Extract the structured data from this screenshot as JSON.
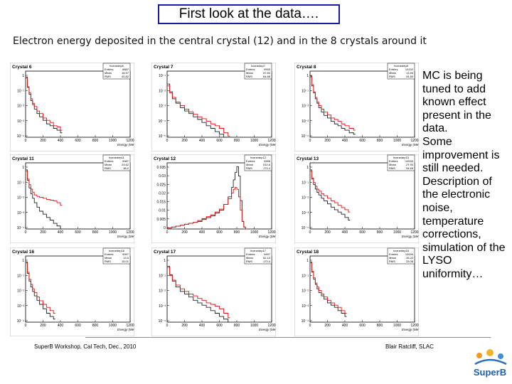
{
  "slide": {
    "title": "First look at the data….",
    "subtitle": "Electron energy deposited in the central crystal (12) and in the 8 crystals around it",
    "bullets": [
      "MC is being tuned to add known effect present in the data.",
      "Some improvement is still needed.",
      "Description of the electronic noise, temperature corrections, simulation of the LYSO uniformity…"
    ],
    "footer_left": "SuperB Workshop, Cal Tech, Dec., 2010",
    "footer_right": "Blair Ratcliff, SLAC",
    "logo_text": "SuperB"
  },
  "chart_data": [
    {
      "type": "line",
      "title": "Crystal 6",
      "xlabel": "Energy (MeV)",
      "xlim": [
        0,
        1200
      ],
      "log_y": true,
      "xticks": [
        "0",
        "200",
        "400",
        "600",
        "800",
        "1000",
        "1200"
      ],
      "yticks": [
        "1",
        "10⁻¹",
        "10⁻²",
        "10⁻³",
        "10⁻⁴"
      ],
      "stats": {
        "name": "hcenedep6",
        "rows": [
          [
            "Entries",
            "8887"
          ],
          [
            "Mean",
            "18.57"
          ],
          [
            "RMS",
            "40.82"
          ]
        ]
      },
      "x": [
        5,
        20,
        40,
        60,
        80,
        100,
        130,
        160,
        200,
        240,
        280,
        320,
        360,
        400
      ],
      "series": [
        {
          "name": "data",
          "color": "#222222",
          "values": [
            0.6,
            0.12,
            0.04,
            0.015,
            0.008,
            0.004,
            0.002,
            0.0012,
            0.0007,
            0.0004,
            0.0003,
            0.0002,
            0.00015,
            0.0001
          ]
        },
        {
          "name": "MC",
          "color": "#e01010",
          "values": [
            0.5,
            0.13,
            0.05,
            0.02,
            0.01,
            0.006,
            0.003,
            0.002,
            0.001,
            0.0007,
            0.0005,
            0.0003,
            0.00025,
            0.00015
          ]
        }
      ]
    },
    {
      "type": "line",
      "title": "Crystal 7",
      "xlabel": "Energy (MeV)",
      "xlim": [
        0,
        1200
      ],
      "log_y": true,
      "xticks": [
        "0",
        "200",
        "400",
        "600",
        "800",
        "1000",
        "1200"
      ],
      "yticks": [
        "10⁻¹",
        "10⁻²",
        "10⁻³",
        "10⁻⁴",
        "10⁻⁵"
      ],
      "stats": {
        "name": "hcenedep7",
        "rows": [
          [
            "Entries",
            "9993"
          ],
          [
            "Mean",
            "57.60"
          ],
          [
            "RMS",
            "64.88"
          ]
        ]
      },
      "x": [
        5,
        30,
        60,
        100,
        150,
        200,
        250,
        300,
        350,
        400,
        450,
        500,
        550,
        600,
        650,
        700
      ],
      "series": [
        {
          "name": "data",
          "color": "#222222",
          "values": [
            0.2,
            0.06,
            0.02,
            0.01,
            0.005,
            0.003,
            0.002,
            0.0012,
            0.0008,
            0.0005,
            0.0003,
            0.0002,
            0.00012,
            8e-05,
            5e-05,
            3e-05
          ]
        },
        {
          "name": "MC",
          "color": "#e01010",
          "values": [
            0.15,
            0.05,
            0.025,
            0.012,
            0.007,
            0.004,
            0.0026,
            0.0018,
            0.0012,
            0.0009,
            0.0006,
            0.0004,
            0.0003,
            0.0002,
            0.0001,
            6e-05
          ]
        }
      ]
    },
    {
      "type": "line",
      "title": "Crystal 8",
      "xlabel": "Energy (MeV)",
      "xlim": [
        0,
        1200
      ],
      "log_y": true,
      "xticks": [
        "0",
        "200",
        "400",
        "600",
        "800",
        "1000",
        "1200"
      ],
      "yticks": [
        "1",
        "10⁻¹",
        "10⁻²",
        "10⁻³",
        "10⁻⁴"
      ],
      "stats": {
        "name": "hcenedep8",
        "rows": [
          [
            "Entries",
            "10152"
          ],
          [
            "Mean",
            "13.55"
          ],
          [
            "RMS",
            "34.80"
          ]
        ]
      },
      "x": [
        5,
        20,
        40,
        60,
        80,
        100,
        130,
        160,
        200,
        240,
        280,
        320,
        360,
        400,
        450,
        500
      ],
      "series": [
        {
          "name": "data",
          "color": "#222222",
          "values": [
            0.7,
            0.15,
            0.05,
            0.02,
            0.01,
            0.005,
            0.0025,
            0.0015,
            0.001,
            0.0006,
            0.0004,
            0.0003,
            0.0002,
            0.00015,
            0.0001,
            8e-05
          ]
        },
        {
          "name": "MC",
          "color": "#e01010",
          "values": [
            0.6,
            0.18,
            0.06,
            0.025,
            0.012,
            0.007,
            0.004,
            0.0025,
            0.0016,
            0.001,
            0.0008,
            0.0006,
            0.0004,
            0.0003,
            0.0002,
            0.00015
          ]
        }
      ]
    },
    {
      "type": "line",
      "title": "Crystal 11",
      "xlabel": "Energy (MeV)",
      "xlim": [
        0,
        1200
      ],
      "log_y": true,
      "xticks": [
        "0",
        "200",
        "400",
        "600",
        "800",
        "1000",
        "1200"
      ],
      "yticks": [
        "1",
        "10⁻¹",
        "10⁻²",
        "10⁻³",
        "10⁻⁴"
      ],
      "stats": {
        "name": "hcenedep11",
        "rows": [
          [
            "Entries",
            "9987"
          ],
          [
            "Mean",
            "24.62"
          ],
          [
            "RMS",
            "38.2"
          ]
        ]
      },
      "x": [
        5,
        20,
        40,
        60,
        80,
        100,
        130,
        160,
        200,
        240,
        280,
        320,
        360,
        400
      ],
      "series": [
        {
          "name": "data",
          "color": "#222222",
          "values": [
            0.5,
            0.1,
            0.03,
            0.012,
            0.006,
            0.003,
            0.0015,
            0.0008,
            0.0005,
            0.0003,
            0.0002,
            0.00012,
            8e-05,
            5e-05
          ]
        },
        {
          "name": "MC",
          "color": "#e01010",
          "values": [
            0.4,
            0.12,
            0.05,
            0.025,
            0.015,
            0.01,
            0.008,
            0.007,
            0.006,
            0.005,
            0.0045,
            0.004,
            0.003,
            0.002
          ]
        }
      ]
    },
    {
      "type": "line",
      "title": "Crystal 12",
      "xlabel": "Energy (MeV)",
      "xlim": [
        0,
        1200
      ],
      "log_y": false,
      "ylim": [
        0,
        0.035
      ],
      "xticks": [
        "0",
        "200",
        "400",
        "600",
        "800",
        "1000",
        "1200"
      ],
      "yticks": [
        "0.035",
        "0.03",
        "0.025",
        "0.02",
        "0.015",
        "0.01",
        "0.005",
        "0"
      ],
      "stats": {
        "name": "hcenedep12",
        "rows": [
          [
            "Entries",
            "9996"
          ],
          [
            "Mean",
            "514.6"
          ],
          [
            "RMS",
            "173.4"
          ]
        ]
      },
      "x": [
        0,
        50,
        100,
        150,
        200,
        250,
        300,
        350,
        400,
        450,
        500,
        550,
        600,
        650,
        700,
        740,
        760,
        780,
        800,
        820,
        840,
        860,
        880,
        900
      ],
      "series": [
        {
          "name": "data",
          "color": "#222222",
          "values": [
            0.0005,
            0.001,
            0.0015,
            0.002,
            0.0025,
            0.003,
            0.0035,
            0.004,
            0.005,
            0.006,
            0.007,
            0.0085,
            0.01,
            0.013,
            0.017,
            0.022,
            0.026,
            0.03,
            0.033,
            0.028,
            0.015,
            0.004,
            0.001,
            0
          ]
        },
        {
          "name": "MC",
          "color": "#e01010",
          "values": [
            0.0005,
            0.001,
            0.0015,
            0.002,
            0.0025,
            0.003,
            0.0035,
            0.0045,
            0.0055,
            0.0065,
            0.0075,
            0.009,
            0.0105,
            0.013,
            0.016,
            0.019,
            0.021,
            0.022,
            0.021,
            0.017,
            0.01,
            0.004,
            0.001,
            0
          ]
        }
      ]
    },
    {
      "type": "line",
      "title": "Crystal 13",
      "xlabel": "Energy (MeV)",
      "xlim": [
        0,
        1200
      ],
      "log_y": true,
      "xticks": [
        "0",
        "200",
        "400",
        "600",
        "800",
        "1000",
        "1200"
      ],
      "yticks": [
        "1",
        "10⁻¹",
        "10⁻²",
        "10⁻³",
        "10⁻⁴"
      ],
      "stats": {
        "name": "hcenedep13",
        "rows": [
          [
            "Entries",
            "10000"
          ],
          [
            "Mean",
            "27.90"
          ],
          [
            "RMS",
            "34.65"
          ]
        ]
      },
      "x": [
        5,
        20,
        40,
        60,
        80,
        100,
        130,
        160,
        200,
        240,
        280,
        320,
        360,
        400,
        440
      ],
      "series": [
        {
          "name": "data",
          "color": "#222222",
          "values": [
            0.5,
            0.12,
            0.05,
            0.025,
            0.015,
            0.01,
            0.006,
            0.004,
            0.0025,
            0.0015,
            0.001,
            0.0007,
            0.0005,
            0.0003,
            0.0002
          ]
        },
        {
          "name": "MC",
          "color": "#e01010",
          "values": [
            0.4,
            0.14,
            0.07,
            0.04,
            0.025,
            0.018,
            0.012,
            0.009,
            0.006,
            0.004,
            0.003,
            0.002,
            0.0014,
            0.001,
            0.0007
          ]
        }
      ]
    },
    {
      "type": "line",
      "title": "Crystal 16",
      "xlabel": "Energy (MeV)",
      "xlim": [
        0,
        1200
      ],
      "log_y": true,
      "xticks": [
        "0",
        "200",
        "400",
        "600",
        "800",
        "1000",
        "1200"
      ],
      "yticks": [
        "1",
        "10⁻¹",
        "10⁻²",
        "10⁻³",
        "10⁻⁴"
      ],
      "stats": {
        "name": "hcenedep16",
        "rows": [
          [
            "Entries",
            "9997"
          ],
          [
            "Mean",
            "13.0"
          ],
          [
            "RMS",
            "15.01"
          ]
        ]
      },
      "x": [
        5,
        20,
        40,
        60,
        80,
        100,
        130,
        160,
        200,
        240,
        280,
        320
      ],
      "series": [
        {
          "name": "data",
          "color": "#222222",
          "values": [
            0.6,
            0.1,
            0.03,
            0.012,
            0.006,
            0.003,
            0.0015,
            0.0008,
            0.0004,
            0.0002,
            0.00012,
            8e-05
          ]
        },
        {
          "name": "MC",
          "color": "#e01010",
          "values": [
            0.5,
            0.12,
            0.04,
            0.018,
            0.009,
            0.005,
            0.0025,
            0.0014,
            0.0008,
            0.0005,
            0.0003,
            0.0002
          ]
        }
      ]
    },
    {
      "type": "line",
      "title": "Crystal 17",
      "xlabel": "Energy (MeV)",
      "xlim": [
        0,
        1200
      ],
      "log_y": true,
      "xticks": [
        "0",
        "200",
        "400",
        "600",
        "800",
        "1000",
        "1200"
      ],
      "yticks": [
        "1",
        "10⁻¹",
        "10⁻²",
        "10⁻³",
        "10⁻⁴"
      ],
      "stats": {
        "name": "hcenedep17",
        "rows": [
          [
            "Entries",
            "9997"
          ],
          [
            "Mean",
            "52.10"
          ],
          [
            "RMS",
            "173.0"
          ]
        ]
      },
      "x": [
        5,
        30,
        60,
        100,
        150,
        200,
        250,
        300,
        350,
        400,
        450,
        500,
        550,
        600,
        650,
        700
      ],
      "series": [
        {
          "name": "data",
          "color": "#222222",
          "values": [
            0.3,
            0.08,
            0.03,
            0.012,
            0.006,
            0.004,
            0.0025,
            0.0015,
            0.001,
            0.0007,
            0.0005,
            0.0003,
            0.0002,
            0.00012,
            8e-05,
            5e-05
          ]
        },
        {
          "name": "MC",
          "color": "#e01010",
          "values": [
            0.25,
            0.07,
            0.035,
            0.016,
            0.009,
            0.006,
            0.004,
            0.003,
            0.002,
            0.0015,
            0.001,
            0.0008,
            0.0006,
            0.0004,
            0.0002,
            0.0001
          ]
        }
      ]
    },
    {
      "type": "line",
      "title": "Crystal 18",
      "xlabel": "Energy (MeV)",
      "xlim": [
        0,
        1200
      ],
      "log_y": true,
      "xticks": [
        "0",
        "200",
        "400",
        "600",
        "800",
        "1000",
        "1200"
      ],
      "yticks": [
        "1",
        "10⁻¹",
        "10⁻²",
        "10⁻³",
        "10⁻⁴"
      ],
      "stats": {
        "name": "hcenedep18",
        "rows": [
          [
            "Entries",
            "10000"
          ],
          [
            "Mean",
            "26.23"
          ],
          [
            "RMS",
            "33.08"
          ]
        ]
      },
      "x": [
        5,
        20,
        40,
        60,
        80,
        100,
        130,
        160,
        200,
        240,
        280,
        320,
        360,
        400
      ],
      "series": [
        {
          "name": "data",
          "color": "#222222",
          "values": [
            0.6,
            0.12,
            0.04,
            0.018,
            0.009,
            0.005,
            0.003,
            0.0018,
            0.001,
            0.0007,
            0.0005,
            0.0003,
            0.0002,
            0.00012
          ]
        },
        {
          "name": "MC",
          "color": "#e01010",
          "values": [
            0.5,
            0.14,
            0.05,
            0.022,
            0.012,
            0.007,
            0.004,
            0.0025,
            0.0015,
            0.001,
            0.0007,
            0.0005,
            0.0003,
            0.0002
          ]
        }
      ]
    }
  ]
}
